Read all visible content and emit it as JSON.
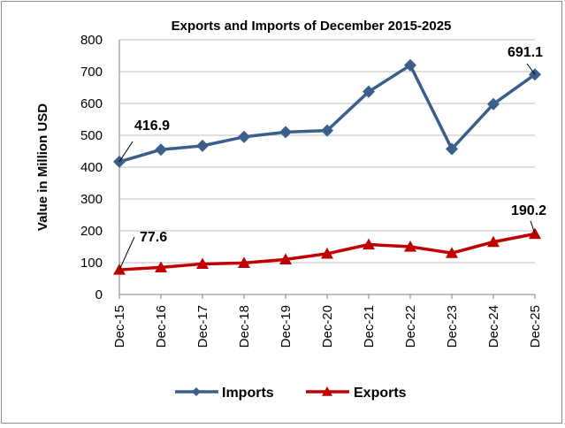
{
  "chart_data": {
    "type": "line",
    "title": "Exports and Imports of December 2015-2025",
    "xlabel": "",
    "ylabel": "Value in Million USD",
    "categories": [
      "Dec-15",
      "Dec-16",
      "Dec-17",
      "Dec-18",
      "Dec-19",
      "Dec-20",
      "Dec-21",
      "Dec-22",
      "Dec-23",
      "Dec-24",
      "Dec-25"
    ],
    "ylim": [
      0,
      800
    ],
    "yticks": [
      0,
      100,
      200,
      300,
      400,
      500,
      600,
      700,
      800
    ],
    "grid": "horizontal",
    "legend_position": "bottom",
    "series": [
      {
        "name": "Imports",
        "color": "#3b5f8a",
        "marker": "diamond",
        "values": [
          416.9,
          455,
          467,
          495,
          510,
          515,
          637,
          720,
          457,
          598,
          691.1
        ]
      },
      {
        "name": "Exports",
        "color": "#c00000",
        "marker": "triangle",
        "values": [
          77.6,
          85,
          96,
          99,
          110,
          128,
          157,
          150,
          130,
          165,
          190.2
        ]
      }
    ],
    "annotations": [
      {
        "series": "Imports",
        "category": "Dec-15",
        "text": "416.9"
      },
      {
        "series": "Imports",
        "category": "Dec-25",
        "text": "691.1"
      },
      {
        "series": "Exports",
        "category": "Dec-15",
        "text": "77.6"
      },
      {
        "series": "Exports",
        "category": "Dec-25",
        "text": "190.2"
      }
    ]
  }
}
